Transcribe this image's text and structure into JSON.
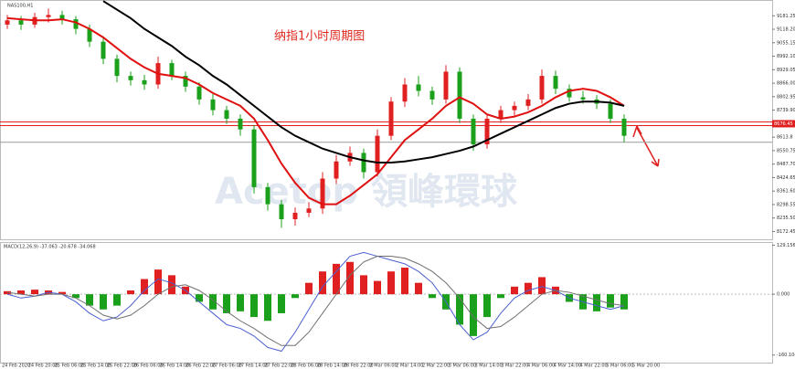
{
  "chart_data": {
    "type": "candlestick",
    "symbol": "NAS100,H1",
    "title": "纳指1小时周期图",
    "watermark": "Acetop 領峰環球",
    "indicator_label": "MACD(12,26,9) -37.063 -20.678 -34.068",
    "ylim": [
      8136,
      9255
    ],
    "yticks": [
      9181.25,
      {
        "value": 9118.2,
        "label": "9118.20"
      },
      9055.15,
      {
        "value": 8992.1,
        "label": "8992.10"
      },
      8929.05,
      {
        "value": 8866,
        "label": "8866.00"
      },
      8802.95,
      {
        "value": 8739.9,
        "label": "8739.90"
      },
      8613.8,
      8550.75,
      {
        "value": 8487.7,
        "label": "8487.70"
      },
      8424.65,
      {
        "value": 8361.6,
        "label": "8361.60"
      },
      8298.55,
      {
        "value": 8235.5,
        "label": "8235.50"
      },
      8172.45
    ],
    "price_label": {
      "value": 8676.45,
      "label": "8676.45"
    },
    "hlines": [
      {
        "value": 8685,
        "color": "#e02020"
      },
      {
        "value": 8668,
        "color": "#e02020"
      },
      {
        "value": 8590,
        "color": "#9a9a9a"
      }
    ],
    "x_labels": [
      "24 Feb 2020",
      "24 Feb 20:00",
      "25 Feb 06:00",
      "25 Feb 14:00",
      "25 Feb 22:00",
      "26 Feb 06:00",
      "26 Feb 14:00",
      "26 Feb 22:00",
      "27 Feb 06:00",
      "27 Feb 14:00",
      "27 Feb 22:00",
      "28 Feb 06:00",
      "28 Feb 14:00",
      "28 Feb 22:00",
      "2 Mar 06:00",
      "2 Mar 14:00",
      "2 Mar 22:00",
      "3 Mar 06:00",
      "3 Mar 14:00",
      "3 Mar 22:00",
      "4 Mar 06:00",
      "4 Mar 14:00",
      "4 Mar 22:00",
      "5 Mar 06:00",
      "5 Mar 20:00"
    ],
    "up_color": "#e02020",
    "down_color": "#1aa01a",
    "open": [
      9140,
      9160,
      9140,
      9175,
      9185,
      9165,
      9120,
      9060,
      8980,
      8900,
      8880,
      8860,
      8960,
      8900,
      8850,
      8790,
      8740,
      8700,
      8650,
      8380,
      8300,
      8230,
      8260,
      8280,
      8420,
      8500,
      8540,
      8450,
      8620,
      8780,
      8860,
      8830,
      8790,
      8920,
      8700,
      8580,
      8700,
      8740,
      8760,
      8790,
      8900,
      8840,
      8800,
      8790,
      8770,
      8700
    ],
    "high": [
      9185,
      9180,
      9195,
      9215,
      9205,
      9180,
      9140,
      9085,
      9000,
      8920,
      8905,
      8990,
      8975,
      8920,
      8870,
      8815,
      8760,
      8720,
      8670,
      8400,
      8320,
      8285,
      8310,
      8450,
      8530,
      8570,
      8560,
      8650,
      8800,
      8890,
      8900,
      8850,
      8950,
      8940,
      8720,
      8720,
      8760,
      8780,
      8815,
      8930,
      8925,
      8860,
      8830,
      8810,
      8790,
      8720
    ],
    "low": [
      9120,
      9115,
      9125,
      9150,
      9140,
      9095,
      9035,
      8955,
      8870,
      8855,
      8835,
      8840,
      8880,
      8825,
      8765,
      8715,
      8675,
      8620,
      8350,
      8270,
      8190,
      8200,
      8240,
      8255,
      8395,
      8480,
      8420,
      8430,
      8600,
      8755,
      8805,
      8765,
      8770,
      8680,
      8550,
      8560,
      8680,
      8715,
      8740,
      8770,
      8815,
      8780,
      8770,
      8745,
      8680,
      8590
    ],
    "close": [
      9160,
      9140,
      9175,
      9185,
      9165,
      9120,
      9060,
      8980,
      8900,
      8880,
      8860,
      8960,
      8900,
      8850,
      8790,
      8740,
      8700,
      8650,
      8380,
      8300,
      8230,
      8260,
      8280,
      8420,
      8500,
      8540,
      8450,
      8620,
      8780,
      8860,
      8830,
      8790,
      8920,
      8700,
      8580,
      8700,
      8740,
      8760,
      8790,
      8900,
      8840,
      8800,
      8790,
      8770,
      8700,
      8620
    ],
    "series": [
      {
        "color": "#e01010",
        "values": [
          9170,
          9165,
          9160,
          9160,
          9165,
          9150,
          9120,
          9080,
          9030,
          8980,
          8940,
          8910,
          8900,
          8890,
          8860,
          8820,
          8790,
          8760,
          8700,
          8600,
          8490,
          8400,
          8330,
          8300,
          8300,
          8340,
          8390,
          8440,
          8520,
          8600,
          8650,
          8700,
          8760,
          8800,
          8770,
          8720,
          8700,
          8710,
          8730,
          8760,
          8800,
          8830,
          8840,
          8830,
          8800,
          8760
        ]
      },
      {
        "color": "#000000",
        "values": [
          null,
          null,
          null,
          null,
          null,
          null,
          null,
          9250,
          9210,
          9170,
          9120,
          9080,
          9040,
          8990,
          8950,
          8900,
          8860,
          8810,
          8760,
          8710,
          8660,
          8620,
          8590,
          8560,
          8540,
          8520,
          8505,
          8495,
          8495,
          8500,
          8510,
          8520,
          8535,
          8550,
          8570,
          8600,
          8630,
          8660,
          8690,
          8720,
          8750,
          8770,
          8780,
          8780,
          8775,
          8760
        ]
      }
    ],
    "macd": {
      "ylim": [
        -180,
        135
      ],
      "yticks": [
        129.156,
        {
          "value": 0,
          "label": "0.000"
        },
        -160.104
      ],
      "histogram": [
        8,
        10,
        12,
        10,
        6,
        -10,
        -30,
        -40,
        -30,
        10,
        40,
        65,
        50,
        20,
        -20,
        -40,
        -50,
        -45,
        -60,
        -70,
        -50,
        -10,
        30,
        60,
        80,
        85,
        50,
        35,
        60,
        70,
        30,
        -10,
        -40,
        -80,
        -110,
        -60,
        -10,
        20,
        30,
        45,
        20,
        -20,
        -40,
        -45,
        -35,
        -40
      ],
      "lines": [
        {
          "color": "#4a5fd0",
          "values": [
            0,
            -10,
            -5,
            5,
            0,
            -20,
            -50,
            -70,
            -60,
            -30,
            10,
            40,
            30,
            10,
            -20,
            -50,
            -80,
            -90,
            -110,
            -140,
            -150,
            -100,
            -40,
            20,
            60,
            100,
            110,
            100,
            90,
            80,
            60,
            30,
            -20,
            -80,
            -120,
            -100,
            -50,
            -10,
            10,
            20,
            10,
            -10,
            -20,
            -30,
            -40,
            -30
          ]
        },
        {
          "color": "#707070",
          "values": [
            5,
            0,
            -5,
            0,
            0,
            -10,
            -30,
            -55,
            -65,
            -55,
            -30,
            0,
            20,
            25,
            10,
            -15,
            -45,
            -70,
            -90,
            -115,
            -135,
            -135,
            -100,
            -50,
            0,
            50,
            85,
            100,
            100,
            95,
            80,
            60,
            30,
            -10,
            -60,
            -90,
            -85,
            -60,
            -30,
            0,
            10,
            5,
            -5,
            -15,
            -25,
            -30
          ]
        }
      ]
    }
  }
}
